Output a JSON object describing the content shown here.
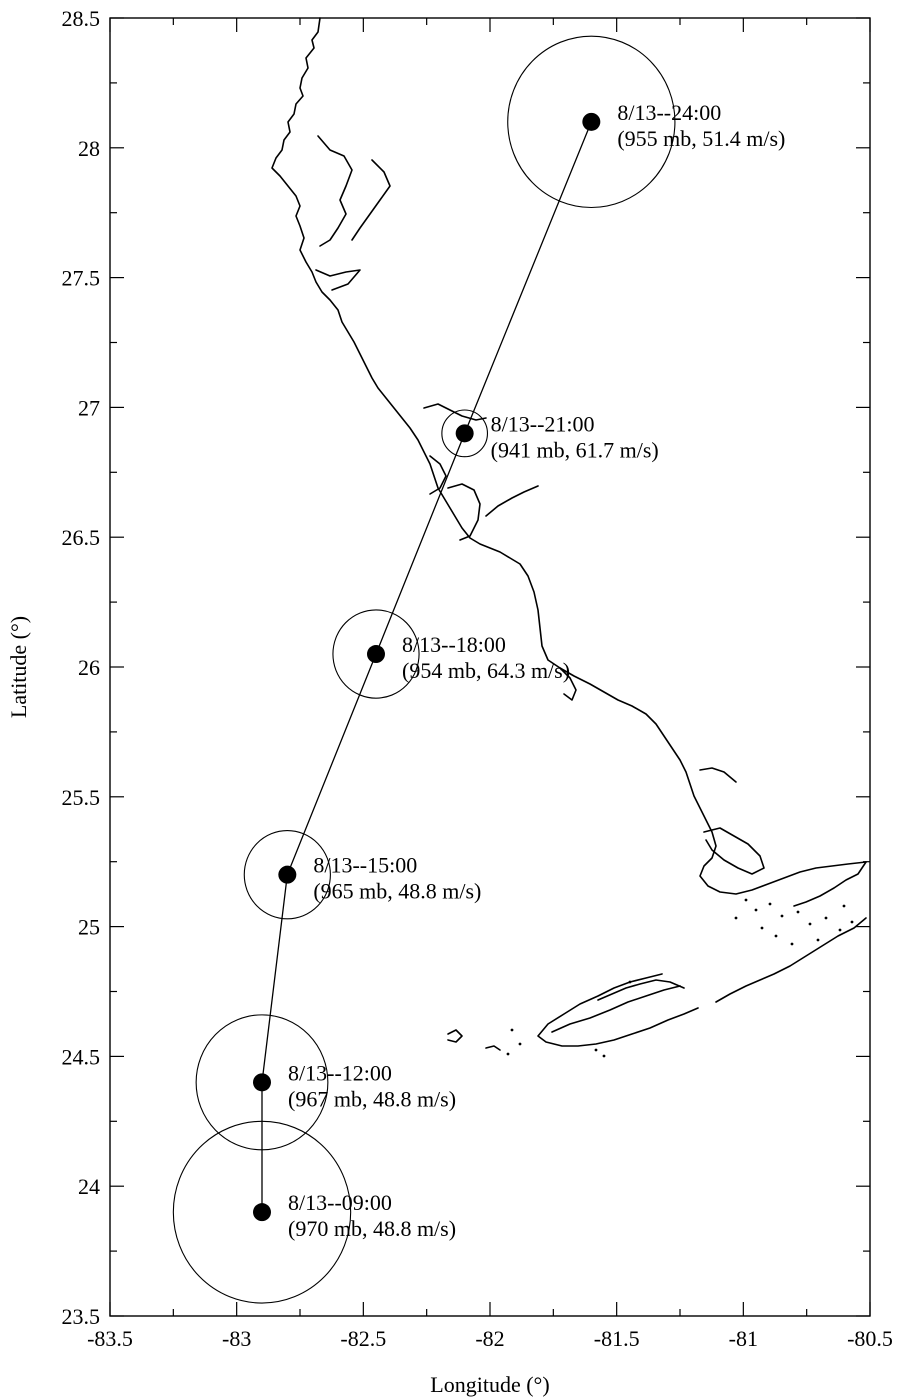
{
  "figure": {
    "xlabel": "Longitude (°)",
    "ylabel": "Latitude (°)",
    "xlim": [
      -83.5,
      -80.5
    ],
    "ylim": [
      23.5,
      28.5
    ],
    "x_ticks": [
      -83.5,
      -83,
      -82.5,
      -82,
      -81.5,
      -81,
      -80.5
    ],
    "y_ticks": [
      23.5,
      24,
      24.5,
      25,
      25.5,
      26,
      26.5,
      27,
      27.5,
      28,
      28.5
    ],
    "x_tick_labels": [
      "-83.5",
      "-83",
      "-82.5",
      "-82",
      "-81.5",
      "-81",
      "-80.5"
    ],
    "y_tick_labels": [
      "23.5",
      "24",
      "24.5",
      "25",
      "25.5",
      "26",
      "26.5",
      "27",
      "27.5",
      "28",
      "28.5"
    ]
  },
  "storm_track": [
    {
      "time": "8/13--09:00",
      "info": "(970 mb, 48.8 m/s)",
      "lon": -82.9,
      "lat": 23.9,
      "radius_deg": 0.35
    },
    {
      "time": "8/13--12:00",
      "info": "(967 mb, 48.8 m/s)",
      "lon": -82.9,
      "lat": 24.4,
      "radius_deg": 0.26
    },
    {
      "time": "8/13--15:00",
      "info": "(965 mb, 48.8 m/s)",
      "lon": -82.8,
      "lat": 25.2,
      "radius_deg": 0.17
    },
    {
      "time": "8/13--18:00",
      "info": "(954 mb, 64.3 m/s)",
      "lon": -82.45,
      "lat": 26.05,
      "radius_deg": 0.17
    },
    {
      "time": "8/13--21:00",
      "info": "(941 mb, 61.7 m/s)",
      "lon": -82.1,
      "lat": 26.9,
      "radius_deg": 0.09
    },
    {
      "time": "8/13--24:00",
      "info": "(955 mb, 51.4 m/s)",
      "lon": -81.6,
      "lat": 28.1,
      "radius_deg": 0.33
    }
  ],
  "colors": {
    "ink": "#000000",
    "background": "#ffffff"
  }
}
